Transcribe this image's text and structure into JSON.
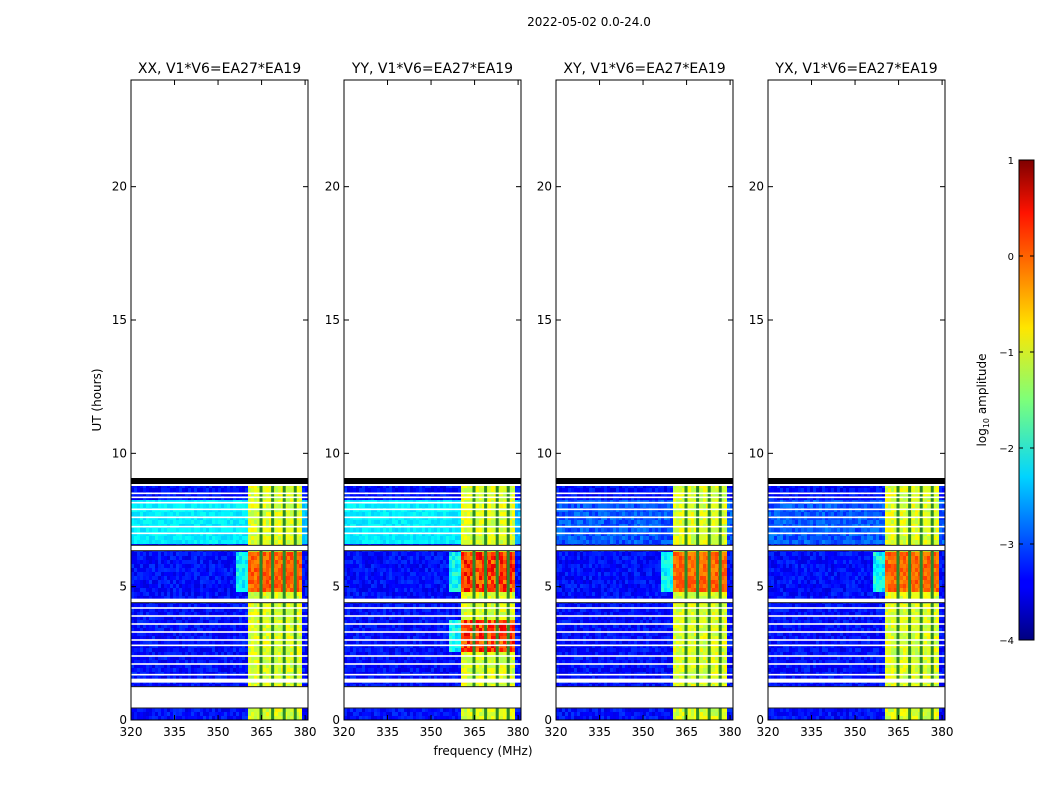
{
  "suptitle": "2022-05-02 0.0-24.0",
  "chart_data": {
    "type": "heatmap",
    "panels": [
      {
        "title": "XX, V1*V6=EA27*EA19",
        "polarization": "XX",
        "hot_rows": [
          [
            4.8,
            6.3
          ]
        ],
        "hot_peak": 0.15
      },
      {
        "title": "YY, V1*V6=EA27*EA19",
        "polarization": "YY",
        "hot_rows": [
          [
            2.5,
            3.8
          ],
          [
            4.8,
            6.3
          ]
        ],
        "hot_peak": 0.55
      },
      {
        "title": "XY, V1*V6=EA27*EA19",
        "polarization": "XY",
        "hot_rows": [
          [
            4.8,
            6.3
          ]
        ],
        "hot_peak": 0.1
      },
      {
        "title": "YX, V1*V6=EA27*EA19",
        "polarization": "YX",
        "hot_rows": [
          [
            4.8,
            6.3
          ]
        ],
        "hot_peak": 0.1
      }
    ],
    "xlabel": "frequency (MHz)",
    "ylabel": "UT (hours)",
    "xlim": [
      320,
      381
    ],
    "ylim": [
      0,
      24
    ],
    "xticks": [
      320,
      335,
      350,
      365,
      380
    ],
    "yticks": [
      0,
      5,
      10,
      15,
      20
    ],
    "data_end_hour": 9.0,
    "rfi_band_mhz": [
      360.5,
      378.5
    ],
    "rfi_channel_gaps_mhz": [
      364.8,
      368.8,
      372.8,
      376.6
    ],
    "blank_hour_bands": [
      [
        0.45,
        1.25
      ],
      [
        1.4,
        1.55
      ],
      [
        4.4,
        4.55
      ],
      [
        6.35,
        6.55
      ]
    ],
    "flag_line_hours": [
      1.7,
      2.1,
      2.4,
      2.8,
      3.0,
      3.3,
      3.6,
      3.9,
      4.2,
      7.0,
      7.25,
      7.6,
      7.9,
      8.15,
      8.35,
      8.5
    ],
    "colorbar": {
      "label_prefix": "log",
      "label_sub": "10",
      "label_suffix": " amplitude",
      "range": [
        -4,
        1
      ],
      "ticks": [
        -4,
        -3,
        -2,
        -1,
        0,
        1
      ],
      "tick_labels": [
        "−4",
        "−3",
        "−2",
        "−1",
        "0",
        "1"
      ],
      "colormap": "jet"
    }
  }
}
